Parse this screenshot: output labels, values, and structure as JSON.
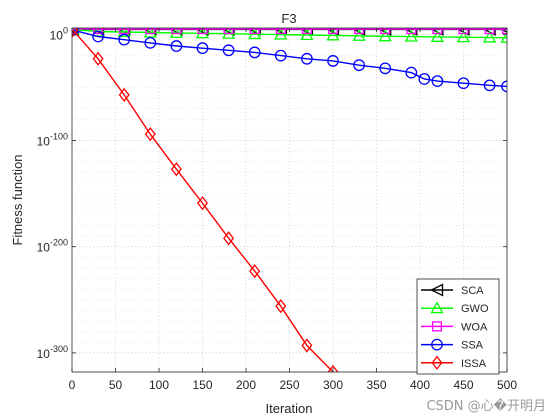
{
  "chart_data": {
    "type": "line",
    "title": "F3",
    "xlabel": "Iteration",
    "ylabel": "Fitness function",
    "xlim": [
      0,
      500
    ],
    "ylim_log10": [
      -318,
      6
    ],
    "yscale": "log",
    "xticks": [
      0,
      50,
      100,
      150,
      200,
      250,
      300,
      350,
      400,
      450,
      500
    ],
    "yticks": [
      {
        "exp": 0,
        "base": "10",
        "sup": "0"
      },
      {
        "exp": -100,
        "base": "10",
        "sup": "-100"
      },
      {
        "exp": -200,
        "base": "10",
        "sup": "-200"
      },
      {
        "exp": -300,
        "base": "10",
        "sup": "-300"
      }
    ],
    "grid": true,
    "minor_grid": true,
    "legend_position": "bottom-right",
    "series": [
      {
        "name": "SCA",
        "color": "#000000",
        "marker": "triangle-left",
        "x": [
          1,
          30,
          60,
          90,
          120,
          150,
          180,
          210,
          240,
          270,
          300,
          330,
          360,
          390,
          420,
          450,
          480,
          500
        ],
        "log10_y": [
          4.8,
          4.7,
          4.7,
          4.7,
          4.7,
          4.7,
          4.7,
          4.7,
          4.7,
          4.7,
          4.7,
          4.7,
          4.7,
          4.7,
          4.7,
          4.7,
          4.7,
          4.7
        ]
      },
      {
        "name": "GWO",
        "color": "#00ff00",
        "marker": "triangle-up",
        "x": [
          1,
          30,
          60,
          90,
          120,
          150,
          180,
          210,
          240,
          270,
          300,
          330,
          360,
          390,
          420,
          450,
          480,
          500
        ],
        "log10_y": [
          4.5,
          2.6,
          2.2,
          1.8,
          1.4,
          1.0,
          0.6,
          0.2,
          -0.2,
          -0.6,
          -1.0,
          -1.4,
          -1.8,
          -2.1,
          -2.4,
          -2.7,
          -3.0,
          -3.2
        ]
      },
      {
        "name": "WOA",
        "color": "#ff00ff",
        "marker": "square",
        "x": [
          1,
          30,
          60,
          90,
          120,
          150,
          180,
          210,
          240,
          270,
          300,
          330,
          360,
          390,
          420,
          450,
          480,
          500
        ],
        "log10_y": [
          5.2,
          5.0,
          5.0,
          5.0,
          5.0,
          5.0,
          5.0,
          5.0,
          5.0,
          5.0,
          5.0,
          5.0,
          5.0,
          5.0,
          5.0,
          5.0,
          5.0,
          5.0
        ]
      },
      {
        "name": "SSA",
        "color": "#0000ff",
        "marker": "circle",
        "x": [
          1,
          30,
          60,
          90,
          120,
          150,
          180,
          210,
          240,
          270,
          300,
          330,
          360,
          390,
          405,
          420,
          450,
          480,
          500
        ],
        "log10_y": [
          4.0,
          -2.0,
          -5.0,
          -8.0,
          -11.0,
          -13.0,
          -15.0,
          -17.0,
          -20.0,
          -23.0,
          -25.0,
          -29.0,
          -32.0,
          -36.0,
          -42.0,
          -44.0,
          -46.0,
          -48.0,
          -49.0
        ]
      },
      {
        "name": "ISSA",
        "color": "#ff0000",
        "marker": "diamond",
        "x": [
          1,
          30,
          60,
          90,
          120,
          150,
          180,
          210,
          240,
          270,
          300
        ],
        "log10_y": [
          4.0,
          -23.0,
          -57.0,
          -94.0,
          -127.0,
          -159.0,
          -192.0,
          -223.0,
          -256.0,
          -293.0,
          -318.0
        ]
      }
    ]
  },
  "watermark": "CSDN @心�开明月"
}
